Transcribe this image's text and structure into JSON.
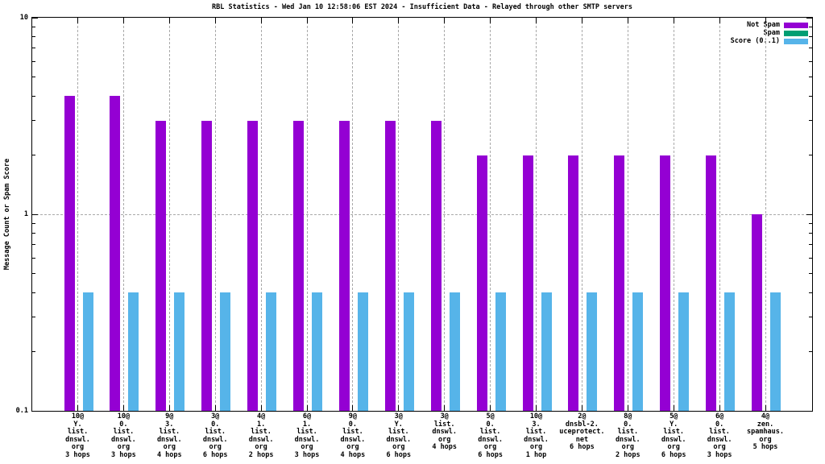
{
  "chart_data": {
    "type": "bar",
    "title": "RBL Statistics - Wed Jan 10 12:58:06 EST 2024 - Insufficient Data - Relayed through other SMTP servers",
    "ylabel": "Message Count or Spam Score",
    "xlabel": "",
    "yscale": "log",
    "ylim": [
      0.1,
      10
    ],
    "y_ticks": [
      {
        "label": "10",
        "value": 10
      },
      {
        "label": "1",
        "value": 1
      },
      {
        "label": "0.1",
        "value": 0.1
      }
    ],
    "grid": true,
    "legend_position": "top-right-inside",
    "grid_color": "#a9a9a9",
    "categories": [
      [
        "10@",
        "Y.",
        "list.",
        "dnswl.",
        "org",
        "3 hops"
      ],
      [
        "10@",
        "0.",
        "list.",
        "dnswl.",
        "org",
        "3 hops"
      ],
      [
        "9@",
        "3.",
        "list.",
        "dnswl.",
        "org",
        "4 hops"
      ],
      [
        "3@",
        "0.",
        "list.",
        "dnswl.",
        "org",
        "6 hops"
      ],
      [
        "4@",
        "1.",
        "list.",
        "dnswl.",
        "org",
        "2 hops"
      ],
      [
        "6@",
        "1.",
        "list.",
        "dnswl.",
        "org",
        "3 hops"
      ],
      [
        "9@",
        "0.",
        "list.",
        "dnswl.",
        "org",
        "4 hops"
      ],
      [
        "3@",
        "Y.",
        "list.",
        "dnswl.",
        "org",
        "6 hops"
      ],
      [
        "3@",
        "list.",
        "dnswl.",
        "org",
        "4 hops"
      ],
      [
        "5@",
        "0.",
        "list.",
        "dnswl.",
        "org",
        "6 hops"
      ],
      [
        "10@",
        "3.",
        "list.",
        "dnswl.",
        "org",
        "1 hop"
      ],
      [
        "2@",
        "dnsbl-2.",
        "uceprotect.",
        "net",
        "6 hops"
      ],
      [
        "8@",
        "0.",
        "list.",
        "dnswl.",
        "org",
        "2 hops"
      ],
      [
        "5@",
        "Y.",
        "list.",
        "dnswl.",
        "org",
        "6 hops"
      ],
      [
        "6@",
        "0.",
        "list.",
        "dnswl.",
        "org",
        "3 hops"
      ],
      [
        "4@",
        "zen.",
        "spamhaus.",
        "org",
        "5 hops"
      ]
    ],
    "series": [
      {
        "name": "Not Spam",
        "color": "#9400d3",
        "values": [
          4,
          4,
          3,
          3,
          3,
          3,
          3,
          3,
          3,
          2,
          2,
          2,
          2,
          2,
          2,
          1
        ]
      },
      {
        "name": "Spam",
        "color": "#009e73",
        "values": [
          0,
          0,
          0,
          0,
          0,
          0,
          0,
          0,
          0,
          0,
          0,
          0,
          0,
          0,
          0,
          0
        ]
      },
      {
        "name": "Score (0..1)",
        "color": "#56b4e9",
        "values": [
          0.4,
          0.4,
          0.4,
          0.4,
          0.4,
          0.4,
          0.4,
          0.4,
          0.4,
          0.4,
          0.4,
          0.4,
          0.4,
          0.4,
          0.4,
          0.4
        ]
      }
    ]
  }
}
